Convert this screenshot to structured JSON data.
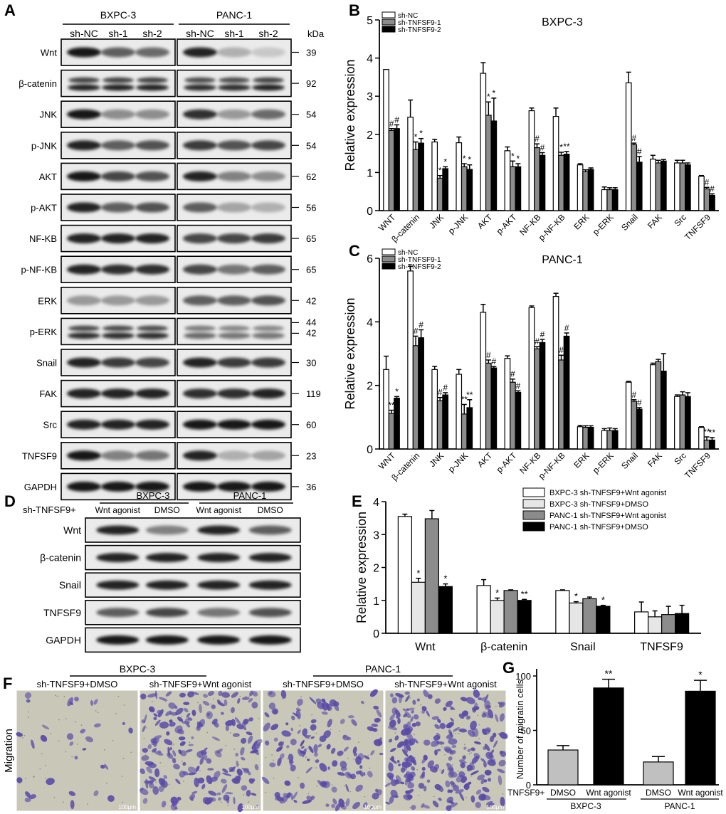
{
  "panel_letters": {
    "A": "A",
    "B": "B",
    "C": "C",
    "D": "D",
    "E": "E",
    "F": "F",
    "G": "G"
  },
  "panel_a": {
    "cell_lines": [
      "BXPC-3",
      "PANC-1"
    ],
    "lanes": [
      "sh-NC",
      "sh-1",
      "sh-2"
    ],
    "kda_label": "kDa",
    "rows": [
      {
        "label": "Wnt",
        "kda": [
          "39"
        ],
        "int": [
          [
            0.9,
            0.6,
            0.55
          ],
          [
            0.85,
            0.25,
            0.15
          ]
        ]
      },
      {
        "label": "β-catenin",
        "kda": [
          "92"
        ],
        "int": [
          [
            0.85,
            0.85,
            0.85
          ],
          [
            0.8,
            0.8,
            0.85
          ]
        ]
      },
      {
        "label": "JNK",
        "kda": [
          "54"
        ],
        "int": [
          [
            0.9,
            0.4,
            0.4
          ],
          [
            0.8,
            0.35,
            0.55
          ]
        ]
      },
      {
        "label": "p-JNK",
        "kda": [
          "54"
        ],
        "int": [
          [
            0.85,
            0.6,
            0.65
          ],
          [
            0.75,
            0.65,
            0.7
          ]
        ]
      },
      {
        "label": "AKT",
        "kda": [
          "62"
        ],
        "int": [
          [
            0.9,
            0.7,
            0.65
          ],
          [
            0.85,
            0.45,
            0.4
          ]
        ]
      },
      {
        "label": "p-AKT",
        "kda": [
          "56"
        ],
        "int": [
          [
            0.85,
            0.6,
            0.65
          ],
          [
            0.6,
            0.3,
            0.25
          ]
        ]
      },
      {
        "label": "NF-KB",
        "kda": [
          "65"
        ],
        "int": [
          [
            0.85,
            0.85,
            0.85
          ],
          [
            0.7,
            0.7,
            0.75
          ]
        ]
      },
      {
        "label": "p-NF-KB",
        "kda": [
          "65"
        ],
        "int": [
          [
            0.85,
            0.8,
            0.8
          ],
          [
            0.7,
            0.5,
            0.6
          ]
        ]
      },
      {
        "label": "ERK",
        "kda": [
          "42"
        ],
        "int": [
          [
            0.35,
            0.35,
            0.35
          ],
          [
            0.6,
            0.6,
            0.65
          ]
        ]
      },
      {
        "label": "p-ERK",
        "kda": [
          "44",
          "42"
        ],
        "int": [
          [
            0.8,
            0.8,
            0.8
          ],
          [
            0.55,
            0.5,
            0.5
          ]
        ]
      },
      {
        "label": "Snail",
        "kda": [
          "30"
        ],
        "int": [
          [
            0.85,
            0.75,
            0.7
          ],
          [
            0.85,
            0.75,
            0.75
          ]
        ]
      },
      {
        "label": "FAK",
        "kda": [
          "119"
        ],
        "int": [
          [
            0.85,
            0.85,
            0.85
          ],
          [
            0.8,
            0.8,
            0.85
          ]
        ]
      },
      {
        "label": "Src",
        "kda": [
          "60"
        ],
        "int": [
          [
            0.85,
            0.85,
            0.85
          ],
          [
            0.9,
            0.9,
            0.9
          ]
        ]
      },
      {
        "label": "TNFSF9",
        "kda": [
          "23"
        ],
        "int": [
          [
            0.9,
            0.45,
            0.5
          ],
          [
            0.85,
            0.25,
            0.3
          ]
        ]
      },
      {
        "label": "GAPDH",
        "kda": [
          "36"
        ],
        "int": [
          [
            0.9,
            0.9,
            0.9
          ],
          [
            0.9,
            0.9,
            0.9
          ]
        ]
      }
    ]
  },
  "panel_d": {
    "prefix": "sh-TNFSF9+",
    "cell_lines": [
      "BXPC-3",
      "PANC-1"
    ],
    "lanes": [
      "Wnt agonist",
      "DMSO",
      "Wnt agonist",
      "DMSO"
    ],
    "rows": [
      {
        "label": "Wnt",
        "int": [
          0.85,
          0.45,
          0.85,
          0.6
        ]
      },
      {
        "label": "β-catenin",
        "int": [
          0.85,
          0.85,
          0.85,
          0.85
        ]
      },
      {
        "label": "Snail",
        "int": [
          0.85,
          0.85,
          0.85,
          0.85
        ]
      },
      {
        "label": "TNFSF9",
        "int": [
          0.6,
          0.7,
          0.5,
          0.65
        ]
      },
      {
        "label": "GAPDH",
        "int": [
          0.9,
          0.9,
          0.9,
          0.9
        ]
      }
    ]
  },
  "panel_f": {
    "cell_lines": [
      "BXPC-3",
      "PANC-1"
    ],
    "labels": [
      "sh-TNFSF9+DMSO",
      "sh-TNFSF9+Wnt agonist",
      "sh-TNFSF9+DMSO",
      "sh-TNFSF9+Wnt agonist"
    ],
    "density": [
      0.12,
      0.75,
      0.55,
      0.9
    ],
    "row_label": "Migration",
    "scale_bar": "100μm"
  },
  "colors": {
    "white_bar": "#ffffff",
    "gray_bar": "#8c8c8c",
    "light_bar": "#e6e6e6",
    "black_bar": "#000000",
    "stain": "#5a4aa8",
    "field": "#c9c8b8"
  },
  "chart_data": [
    {
      "panel": "B",
      "type": "bar",
      "title": "BXPC-3",
      "ylabel": "Relative expression",
      "ylim": [
        0,
        5
      ],
      "yticks": [
        0,
        1,
        2,
        3,
        4,
        5
      ],
      "categories": [
        "WNT",
        "β-catenin",
        "JNK",
        "p-JNK",
        "AKT",
        "p-AKT",
        "NF-KB",
        "p-NF-KB",
        "ERK",
        "p-ERK",
        "Snail",
        "FAK",
        "Src",
        "TNFSF9"
      ],
      "legend": [
        "sh-NC",
        "sh-TNFSF9-1",
        "sh-TNFSF9-2"
      ],
      "series": [
        {
          "name": "sh-NC",
          "values": [
            3.7,
            2.45,
            1.8,
            1.78,
            3.6,
            1.57,
            2.62,
            2.47,
            1.2,
            0.55,
            3.35,
            1.35,
            1.25,
            0.9
          ],
          "err": [
            0.0,
            0.45,
            0.07,
            0.15,
            0.28,
            0.1,
            0.07,
            0.22,
            0.03,
            0.07,
            0.28,
            0.1,
            0.07,
            0.02
          ],
          "marks": [
            "",
            "",
            "",
            "",
            "",
            "",
            "",
            "",
            "",
            "",
            "",
            "",
            "",
            ""
          ]
        },
        {
          "name": "sh-TNFSF9-1",
          "values": [
            2.1,
            1.6,
            0.85,
            1.15,
            2.5,
            1.15,
            1.65,
            1.45,
            1.02,
            0.55,
            1.73,
            1.25,
            1.25,
            0.57
          ],
          "err": [
            0.05,
            0.2,
            0.07,
            0.08,
            0.35,
            0.15,
            0.1,
            0.08,
            0.05,
            0.05,
            0.04,
            0.07,
            0.07,
            0.04
          ],
          "marks": [
            "#",
            "*",
            "*",
            "*",
            "*",
            "*",
            "#",
            "*",
            "",
            "",
            "#",
            "",
            "",
            "#"
          ]
        },
        {
          "name": "sh-TNFSF9-2",
          "values": [
            2.15,
            1.77,
            1.1,
            1.08,
            2.35,
            1.15,
            1.45,
            1.48,
            1.08,
            0.55,
            1.27,
            1.3,
            1.2,
            0.4
          ],
          "err": [
            0.1,
            0.12,
            0.05,
            0.12,
            0.6,
            0.08,
            0.07,
            0.07,
            0.04,
            0.05,
            0.15,
            0.04,
            0.05,
            0.04
          ],
          "marks": [
            "#",
            "*",
            "*",
            "*",
            "*",
            "*",
            "#",
            "**",
            "",
            "",
            "#",
            "",
            "",
            "#"
          ]
        }
      ]
    },
    {
      "panel": "C",
      "type": "bar",
      "title": "PANC-1",
      "ylabel": "Relative expression",
      "ylim": [
        0,
        6
      ],
      "yticks": [
        0,
        2,
        4,
        6
      ],
      "categories": [
        "WNT",
        "β-catenin",
        "JNK",
        "p-JNK",
        "AKT",
        "p-AKT",
        "NF-KB",
        "p-NF-KB",
        "ERK",
        "p-ERK",
        "Snail",
        "FAK",
        "Src",
        "TNFSF9"
      ],
      "legend": [
        "sh-NC",
        "sh-TNFSF9-1",
        "sh-TNFSF9-2"
      ],
      "series": [
        {
          "name": "sh-NC",
          "values": [
            2.5,
            5.6,
            2.5,
            2.35,
            4.3,
            2.85,
            4.45,
            4.8,
            0.7,
            0.58,
            2.1,
            2.65,
            1.65,
            0.68
          ],
          "err": [
            0.42,
            0.15,
            0.1,
            0.15,
            0.25,
            0.08,
            0.05,
            0.1,
            0.04,
            0.06,
            0.03,
            0.05,
            0.05,
            0.02
          ],
          "marks": [
            "",
            "",
            "",
            "",
            "",
            "",
            "",
            "",
            "",
            "",
            "",
            "",
            "",
            ""
          ]
        },
        {
          "name": "sh-TNFSF9-1",
          "values": [
            1.12,
            3.25,
            1.52,
            1.1,
            2.7,
            2.1,
            3.15,
            2.8,
            0.68,
            0.58,
            1.5,
            2.75,
            1.7,
            0.28
          ],
          "err": [
            0.1,
            0.3,
            0.1,
            0.3,
            0.1,
            0.1,
            0.07,
            0.15,
            0.05,
            0.08,
            0.05,
            0.07,
            0.1,
            0.1
          ],
          "marks": [
            "**",
            "#",
            "#",
            "**",
            "#",
            "#",
            "#",
            "#",
            "",
            "",
            "#",
            "",
            "",
            "**"
          ]
        },
        {
          "name": "sh-TNFSF9-2",
          "values": [
            1.6,
            3.5,
            1.7,
            1.3,
            2.55,
            1.78,
            3.35,
            3.55,
            0.68,
            0.58,
            1.25,
            2.45,
            1.65,
            0.28
          ],
          "err": [
            0.05,
            0.25,
            0.07,
            0.25,
            0.05,
            0.05,
            0.1,
            0.1,
            0.05,
            0.06,
            0.05,
            0.55,
            0.12,
            0.08
          ],
          "marks": [
            "*",
            "#",
            "#",
            "**",
            "#",
            "#",
            "#",
            "#",
            "",
            "",
            "#",
            "",
            "",
            "**"
          ]
        }
      ]
    },
    {
      "panel": "E",
      "type": "bar",
      "ylabel": "Relative expression",
      "ylim": [
        0,
        4
      ],
      "yticks": [
        0,
        1,
        2,
        3,
        4
      ],
      "categories": [
        "Wnt",
        "β-catenin",
        "Snail",
        "TNFSF9"
      ],
      "legend": [
        "BXPC-3 sh-TNFSF9+Wnt agonist",
        "BXPC-3 sh-TNFSF9+DMSO",
        "PANC-1 sh-TNFSF9+Wnt agonist",
        "PANC-1 sh-TNFSF9+DMSO"
      ],
      "series": [
        {
          "name": "BXPC-3 sh-TNFSF9+Wnt agonist",
          "values": [
            3.55,
            1.45,
            1.3,
            0.65
          ],
          "err": [
            0.07,
            0.18,
            0.02,
            0.3
          ],
          "marks": [
            "",
            "",
            "",
            ""
          ]
        },
        {
          "name": "BXPC-3 sh-TNFSF9+DMSO",
          "values": [
            1.55,
            1.0,
            0.92,
            0.5
          ],
          "err": [
            0.12,
            0.07,
            0.04,
            0.18
          ],
          "marks": [
            "*",
            "*",
            "*",
            ""
          ]
        },
        {
          "name": "PANC-1 sh-TNFSF9+Wnt agonist",
          "values": [
            3.48,
            1.3,
            1.05,
            0.57
          ],
          "err": [
            0.25,
            0.02,
            0.05,
            0.25
          ],
          "marks": [
            "",
            "",
            "",
            ""
          ]
        },
        {
          "name": "PANC-1 sh-TNFSF9+DMSO",
          "values": [
            1.42,
            1.0,
            0.82,
            0.6
          ],
          "err": [
            0.08,
            0.03,
            0.03,
            0.25
          ],
          "marks": [
            "*",
            "**",
            "*",
            ""
          ]
        }
      ]
    },
    {
      "panel": "G",
      "type": "bar",
      "ylabel": "Number of migratin cells",
      "ylim": [
        0,
        100
      ],
      "yticks": [
        0,
        50,
        100
      ],
      "row_prefix": "TNFSF9+",
      "categories": [
        "DMSO",
        "Wnt agonist",
        "DMSO",
        "Wnt agonist"
      ],
      "groups": [
        "BXPC-3",
        "PANC-1"
      ],
      "values": [
        32,
        89,
        21,
        86
      ],
      "err": [
        4,
        8,
        5,
        10
      ],
      "marks": [
        "",
        "**",
        "",
        "*"
      ],
      "fills": [
        "#c0c0c0",
        "#000000",
        "#c0c0c0",
        "#000000"
      ]
    }
  ]
}
